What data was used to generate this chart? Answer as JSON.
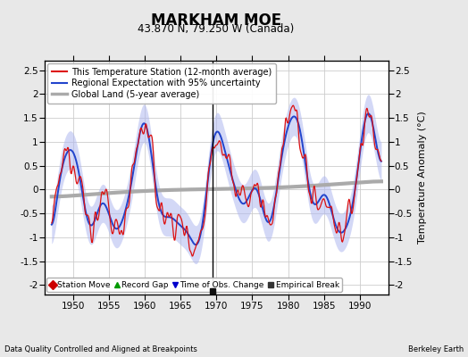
{
  "title": "MARKHAM MOE",
  "subtitle": "43.870 N, 79.250 W (Canada)",
  "ylabel": "Temperature Anomaly (°C)",
  "xlabel_bottom": "Data Quality Controlled and Aligned at Breakpoints",
  "xlabel_right": "Berkeley Earth",
  "ylim": [
    -2.2,
    2.7
  ],
  "xlim": [
    1946,
    1994
  ],
  "xticks": [
    1950,
    1955,
    1960,
    1965,
    1970,
    1975,
    1980,
    1985,
    1990
  ],
  "yticks": [
    -2,
    -1.5,
    -1,
    -0.5,
    0,
    0.5,
    1,
    1.5,
    2,
    2.5
  ],
  "legend_items": [
    {
      "label": "This Temperature Station (12-month average)",
      "color": "#ff0000",
      "lw": 1.5
    },
    {
      "label": "Regional Expectation with 95% uncertainty",
      "color": "#3333cc",
      "lw": 1.5
    },
    {
      "label": "Global Land (5-year average)",
      "color": "#aaaaaa",
      "lw": 2.5
    }
  ],
  "marker_legend": [
    {
      "label": "Station Move",
      "marker": "D",
      "color": "#cc0000"
    },
    {
      "label": "Record Gap",
      "marker": "^",
      "color": "#009900"
    },
    {
      "label": "Time of Obs. Change",
      "marker": "v",
      "color": "#0000cc"
    },
    {
      "label": "Empirical Break",
      "marker": "s",
      "color": "#333333"
    }
  ],
  "empirical_break_year": 1969.5,
  "background_color": "#e8e8e8",
  "plot_bg_color": "#ffffff",
  "grid_color": "#cccccc",
  "title_fontsize": 12,
  "subtitle_fontsize": 8.5,
  "tick_fontsize": 7.5,
  "legend_fontsize": 7.0
}
